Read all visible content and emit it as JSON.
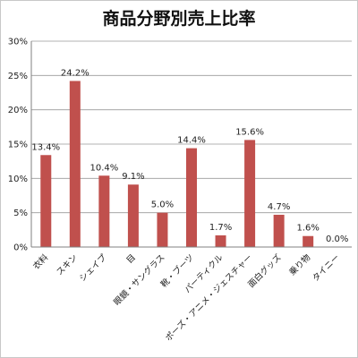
{
  "chart_data": {
    "type": "bar",
    "title": "商品分野別売上比率",
    "categories": [
      "衣料",
      "スキン",
      "シェイプ",
      "目",
      "眼鏡・サングラス",
      "靴・ブーツ",
      "パーティクル",
      "ポーズ・アニメ・ジェスチャー",
      "面白グッズ",
      "乗り物",
      "タイニー"
    ],
    "values": [
      13.4,
      24.2,
      10.4,
      9.1,
      5.0,
      14.4,
      1.7,
      15.6,
      4.7,
      1.6,
      0.0
    ],
    "data_labels": [
      "13.4%",
      "24.2%",
      "10.4%",
      "9.1%",
      "5.0%",
      "14.4%",
      "1.7%",
      "15.6%",
      "4.7%",
      "1.6%",
      "0.0%"
    ],
    "y_ticks": [
      0,
      5,
      10,
      15,
      20,
      25,
      30
    ],
    "y_tick_labels": [
      "0%",
      "5%",
      "10%",
      "15%",
      "20%",
      "25%",
      "30%"
    ],
    "ylim": [
      0,
      30
    ],
    "grid": true,
    "legend": "none",
    "bar_color": "#c0504d",
    "grid_color": "#9a9a9a"
  }
}
